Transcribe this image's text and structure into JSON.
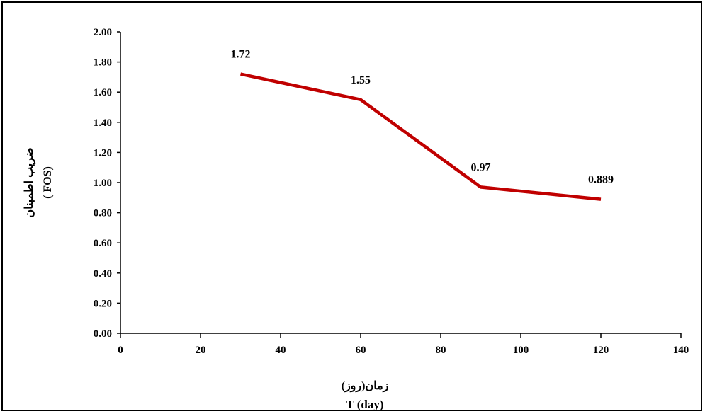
{
  "chart_data": {
    "type": "line",
    "title": "",
    "xlabel_fa": "زمان(روز)",
    "xlabel": "T (day)",
    "ylabel_fa": "ضریب اطمینان",
    "ylabel": "( FOS)",
    "xlim": [
      0,
      140
    ],
    "ylim": [
      0,
      2
    ],
    "xticks": [
      "0",
      "20",
      "40",
      "60",
      "80",
      "100",
      "120",
      "140"
    ],
    "yticks": [
      "0.00",
      "0.20",
      "0.40",
      "0.60",
      "0.80",
      "1.00",
      "1.20",
      "1.40",
      "1.60",
      "1.80",
      "2.00"
    ],
    "grid": false,
    "legend": "none",
    "series": [
      {
        "color": "#c00000",
        "x": [
          30,
          60,
          90,
          120
        ],
        "y": [
          1.72,
          1.55,
          0.97,
          0.889
        ],
        "labels": [
          "1.72",
          "1.55",
          "0.97",
          "0.889"
        ]
      }
    ]
  }
}
